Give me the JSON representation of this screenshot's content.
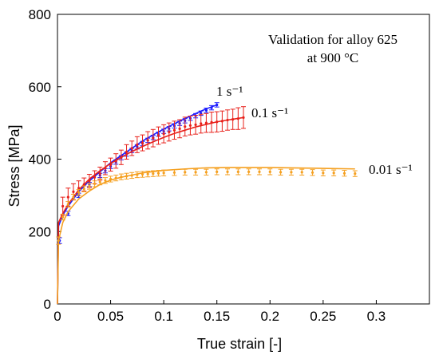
{
  "chart_data": {
    "type": "line",
    "annotation": [
      "Validation for alloy 625",
      "at 900 °C"
    ],
    "xlabel": "True strain [-]",
    "ylabel": "Stress [MPa]",
    "xlim": [
      0,
      0.35
    ],
    "ylim": [
      0,
      800
    ],
    "xticks": [
      0,
      0.05,
      0.1,
      0.15,
      0.2,
      0.25,
      0.3
    ],
    "xtick_labels": [
      "0",
      "0.05",
      "0.1",
      "0.15",
      "0.2",
      "0.25",
      "0.3"
    ],
    "yticks": [
      0,
      200,
      400,
      600,
      800
    ],
    "ytick_labels": [
      "0",
      "200",
      "400",
      "600",
      "800"
    ],
    "grid": false,
    "series": [
      {
        "name": "1 s⁻¹",
        "color": "#1a1aff",
        "model": {
          "x": [
            0,
            0.001,
            0.005,
            0.01,
            0.02,
            0.03,
            0.04,
            0.05,
            0.06,
            0.07,
            0.08,
            0.09,
            0.1,
            0.11,
            0.12,
            0.13,
            0.14,
            0.15
          ],
          "y": [
            0,
            215,
            245,
            270,
            310,
            340,
            365,
            390,
            410,
            430,
            450,
            467,
            483,
            498,
            512,
            526,
            539,
            550
          ]
        },
        "experiment": {
          "x": [
            0.002,
            0.01,
            0.02,
            0.03,
            0.04,
            0.045,
            0.05,
            0.055,
            0.06,
            0.065,
            0.07,
            0.075,
            0.08,
            0.085,
            0.09,
            0.095,
            0.1,
            0.105,
            0.11,
            0.115,
            0.12,
            0.125,
            0.13,
            0.135,
            0.14,
            0.145,
            0.15
          ],
          "y": [
            175,
            250,
            300,
            330,
            355,
            368,
            380,
            392,
            404,
            414,
            424,
            434,
            443,
            452,
            460,
            469,
            477,
            484,
            492,
            499,
            506,
            513,
            520,
            527,
            535,
            542,
            550
          ],
          "err": [
            8,
            6,
            6,
            6,
            6,
            6,
            6,
            6,
            6,
            6,
            6,
            6,
            6,
            6,
            6,
            6,
            6,
            6,
            6,
            6,
            6,
            6,
            6,
            6,
            6,
            6,
            6
          ]
        }
      },
      {
        "name": "0.1 s⁻¹",
        "color": "#e8201a",
        "model": {
          "x": [
            0,
            0.001,
            0.005,
            0.01,
            0.02,
            0.03,
            0.04,
            0.05,
            0.06,
            0.07,
            0.08,
            0.09,
            0.1,
            0.11,
            0.12,
            0.13,
            0.14,
            0.15,
            0.16,
            0.175
          ],
          "y": [
            0,
            225,
            250,
            275,
            315,
            345,
            368,
            388,
            405,
            421,
            435,
            448,
            460,
            471,
            480,
            489,
            496,
            503,
            508,
            515
          ]
        },
        "experiment": {
          "x": [
            0.005,
            0.01,
            0.015,
            0.02,
            0.025,
            0.03,
            0.035,
            0.04,
            0.045,
            0.05,
            0.055,
            0.06,
            0.065,
            0.07,
            0.075,
            0.08,
            0.085,
            0.09,
            0.095,
            0.1,
            0.105,
            0.11,
            0.115,
            0.12,
            0.125,
            0.13,
            0.135,
            0.14,
            0.145,
            0.15,
            0.155,
            0.16,
            0.165,
            0.17,
            0.175
          ],
          "y": [
            270,
            295,
            310,
            320,
            330,
            340,
            350,
            360,
            375,
            385,
            395,
            405,
            420,
            430,
            440,
            445,
            452,
            458,
            465,
            470,
            475,
            480,
            484,
            490,
            493,
            495,
            498,
            500,
            502,
            503,
            505,
            508,
            510,
            512,
            515
          ],
          "err": [
            25,
            25,
            22,
            20,
            18,
            18,
            18,
            18,
            18,
            18,
            20,
            20,
            20,
            20,
            22,
            22,
            24,
            24,
            24,
            25,
            25,
            25,
            25,
            26,
            26,
            26,
            26,
            26,
            28,
            28,
            28,
            28,
            28,
            30,
            30
          ]
        }
      },
      {
        "name": "0.01 s⁻¹",
        "color": "#f5a020",
        "model": {
          "x": [
            0,
            0.001,
            0.005,
            0.01,
            0.02,
            0.03,
            0.04,
            0.05,
            0.06,
            0.08,
            0.1,
            0.12,
            0.14,
            0.16,
            0.18,
            0.2,
            0.22,
            0.24,
            0.26,
            0.28
          ],
          "y": [
            0,
            175,
            225,
            255,
            290,
            312,
            330,
            342,
            350,
            362,
            369,
            373,
            376,
            377,
            377,
            377,
            376,
            375,
            374,
            373
          ]
        },
        "experiment": {
          "x": [
            0.001,
            0.005,
            0.01,
            0.015,
            0.02,
            0.025,
            0.03,
            0.035,
            0.04,
            0.045,
            0.05,
            0.055,
            0.06,
            0.065,
            0.07,
            0.075,
            0.08,
            0.085,
            0.09,
            0.095,
            0.1,
            0.11,
            0.12,
            0.13,
            0.14,
            0.15,
            0.16,
            0.17,
            0.18,
            0.19,
            0.2,
            0.21,
            0.22,
            0.23,
            0.24,
            0.25,
            0.26,
            0.27,
            0.28
          ],
          "y": [
            175,
            240,
            275,
            295,
            308,
            318,
            325,
            332,
            337,
            341,
            345,
            348,
            351,
            353,
            355,
            357,
            358,
            359,
            360,
            361,
            362,
            363,
            364,
            364,
            364,
            365,
            365,
            365,
            365,
            365,
            365,
            364,
            364,
            364,
            363,
            362,
            362,
            361,
            360
          ],
          "err": [
            10,
            8,
            8,
            8,
            8,
            8,
            8,
            8,
            8,
            8,
            8,
            8,
            8,
            8,
            8,
            8,
            8,
            8,
            8,
            8,
            8,
            8,
            8,
            8,
            8,
            8,
            8,
            8,
            8,
            8,
            8,
            8,
            8,
            8,
            8,
            8,
            8,
            8,
            8
          ]
        }
      }
    ]
  }
}
